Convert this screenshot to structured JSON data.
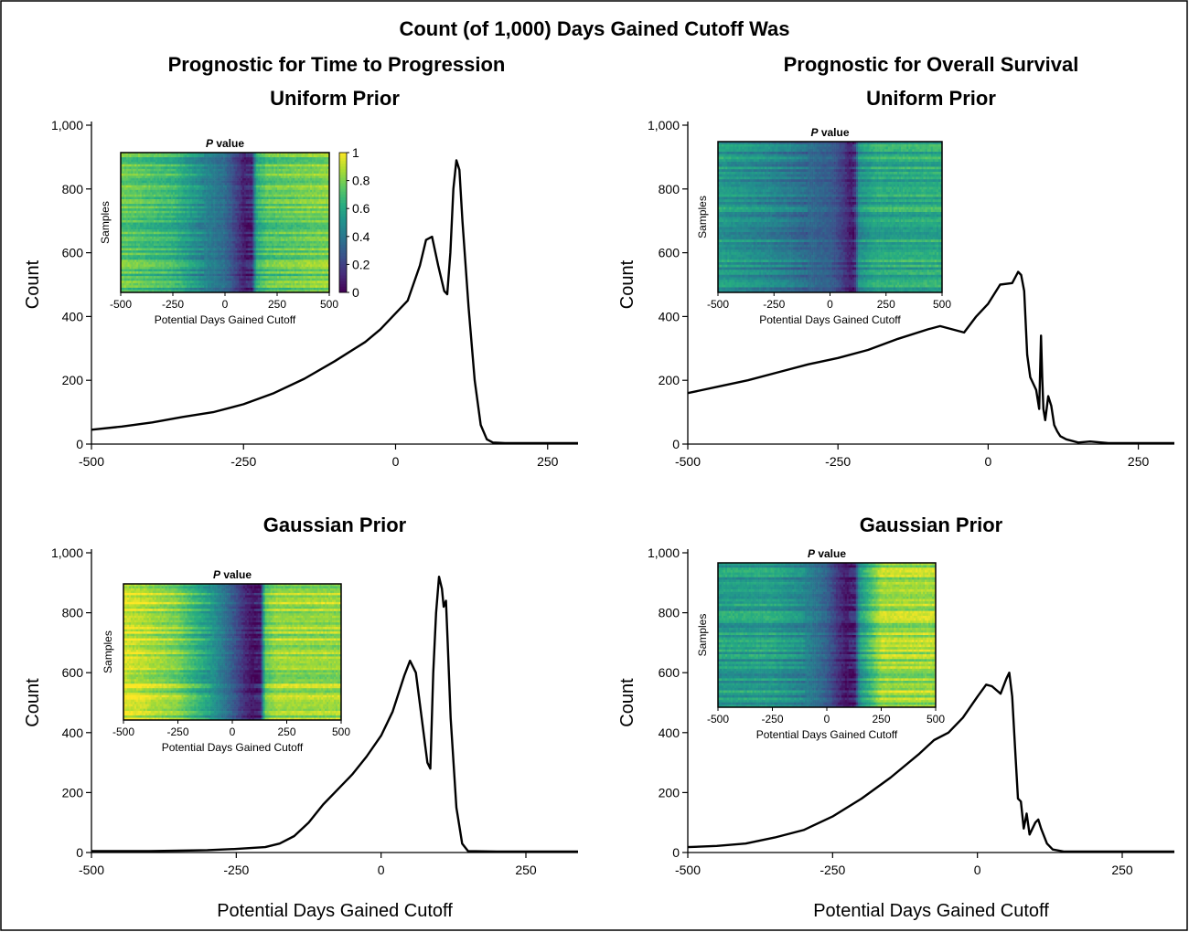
{
  "figure_title": "Count (of 1,000) Days Gained Cutoff Was",
  "columns": {
    "left": [
      "Prognostic for Time to Progression"
    ],
    "right": [
      "Prognostic for Overall Survival"
    ]
  },
  "colors": {
    "line": "#000000",
    "frame": "#000000",
    "background": "#ffffff"
  },
  "colormap": "viridis",
  "chart_data": [
    {
      "type": "line",
      "title": "Uniform Prior",
      "xlabel": "",
      "ylabel": "Count",
      "xlim": [
        -500,
        300
      ],
      "ylim": [
        0,
        1000
      ],
      "xticks": [
        -500,
        -250,
        0,
        250
      ],
      "xtick_labels": [
        "-500",
        "-250",
        "0",
        "250"
      ],
      "yticks": [
        0,
        200,
        400,
        600,
        800,
        1000
      ],
      "ytick_labels": [
        "0",
        "200",
        "400",
        "600",
        "800",
        "1,000"
      ],
      "series": [
        {
          "x": [
            -500,
            -450,
            -400,
            -350,
            -300,
            -250,
            -200,
            -150,
            -100,
            -50,
            -25,
            0,
            20,
            40,
            50,
            60,
            70,
            80,
            85,
            90,
            95,
            100,
            105,
            110,
            120,
            130,
            140,
            150,
            160,
            180,
            200,
            250,
            300
          ],
          "y": [
            45,
            55,
            68,
            85,
            100,
            125,
            160,
            205,
            260,
            320,
            360,
            410,
            450,
            560,
            640,
            650,
            560,
            480,
            470,
            600,
            800,
            890,
            860,
            700,
            430,
            200,
            60,
            15,
            5,
            3,
            3,
            3,
            3
          ]
        }
      ],
      "inset": {
        "title_prefix": "P",
        "title_suffix": " value",
        "xlabel": "Potential Days Gained Cutoff",
        "ylabel": "Samples",
        "xticks": [
          "-500",
          "-250",
          "0",
          "250",
          "500"
        ],
        "colorbar": true,
        "colorbar_ticks": [
          "0",
          "0.2",
          "0.4",
          "0.6",
          "0.8",
          "1"
        ],
        "profile": {
          "x": [
            -500,
            -250,
            -100,
            0,
            60,
            90,
            130,
            150,
            200,
            500
          ],
          "v": [
            0.75,
            0.65,
            0.45,
            0.35,
            0.18,
            0.08,
            0.1,
            0.6,
            0.72,
            0.8
          ]
        }
      }
    },
    {
      "type": "line",
      "title": "Uniform Prior",
      "xlabel": "",
      "ylabel": "Count",
      "xlim": [
        -500,
        310
      ],
      "ylim": [
        0,
        1000
      ],
      "xticks": [
        -500,
        -250,
        0,
        250
      ],
      "xtick_labels": [
        "-500",
        "-250",
        "0",
        "250"
      ],
      "yticks": [
        0,
        200,
        400,
        600,
        800,
        1000
      ],
      "ytick_labels": [
        "0",
        "200",
        "400",
        "600",
        "800",
        "1,000"
      ],
      "series": [
        {
          "x": [
            -500,
            -450,
            -400,
            -350,
            -300,
            -250,
            -200,
            -150,
            -100,
            -80,
            -60,
            -40,
            -20,
            0,
            20,
            40,
            50,
            55,
            60,
            65,
            70,
            80,
            85,
            88,
            90,
            92,
            95,
            100,
            105,
            110,
            115,
            120,
            130,
            150,
            170,
            200,
            250,
            310
          ],
          "y": [
            160,
            180,
            200,
            225,
            250,
            270,
            295,
            330,
            360,
            370,
            360,
            350,
            400,
            440,
            500,
            505,
            540,
            530,
            480,
            280,
            210,
            170,
            110,
            340,
            210,
            110,
            75,
            150,
            120,
            60,
            40,
            25,
            15,
            5,
            8,
            3,
            3,
            3
          ]
        }
      ],
      "inset": {
        "title_prefix": "P",
        "title_suffix": " value",
        "xlabel": "Potential Days Gained Cutoff",
        "ylabel": "Samples",
        "xticks": [
          "-500",
          "-250",
          "0",
          "250",
          "500"
        ],
        "colorbar": false,
        "colorbar_ticks": [],
        "profile": {
          "x": [
            -500,
            -250,
            -100,
            0,
            60,
            90,
            110,
            130,
            200,
            500
          ],
          "v": [
            0.55,
            0.45,
            0.35,
            0.3,
            0.18,
            0.08,
            0.12,
            0.5,
            0.6,
            0.62
          ]
        }
      }
    },
    {
      "type": "line",
      "title": "Gaussian Prior",
      "xlabel": "Potential Days Gained Cutoff",
      "ylabel": "Count",
      "xlim": [
        -500,
        340
      ],
      "ylim": [
        0,
        1000
      ],
      "xticks": [
        -500,
        -250,
        0,
        250
      ],
      "xtick_labels": [
        "-500",
        "-250",
        "0",
        "250"
      ],
      "yticks": [
        0,
        200,
        400,
        600,
        800,
        1000
      ],
      "ytick_labels": [
        "0",
        "200",
        "400",
        "600",
        "800",
        "1,000"
      ],
      "series": [
        {
          "x": [
            -500,
            -450,
            -400,
            -350,
            -300,
            -250,
            -200,
            -175,
            -150,
            -125,
            -100,
            -75,
            -50,
            -25,
            0,
            20,
            40,
            50,
            60,
            70,
            80,
            85,
            90,
            95,
            100,
            105,
            108,
            112,
            115,
            120,
            130,
            140,
            150,
            200,
            250,
            340
          ],
          "y": [
            5,
            5,
            5,
            6,
            8,
            12,
            18,
            30,
            55,
            100,
            160,
            210,
            260,
            320,
            390,
            470,
            590,
            640,
            600,
            450,
            300,
            280,
            600,
            800,
            920,
            880,
            820,
            840,
            700,
            450,
            150,
            30,
            5,
            3,
            3,
            3
          ]
        }
      ],
      "inset": {
        "title_prefix": "P",
        "title_suffix": " value",
        "xlabel": "Potential Days Gained Cutoff",
        "ylabel": "Samples",
        "xticks": [
          "-500",
          "-250",
          "0",
          "250",
          "500"
        ],
        "colorbar": false,
        "colorbar_ticks": [],
        "profile": {
          "x": [
            -500,
            -400,
            -250,
            -100,
            0,
            60,
            90,
            130,
            150,
            200,
            500
          ],
          "v": [
            0.95,
            0.9,
            0.8,
            0.55,
            0.3,
            0.12,
            0.06,
            0.1,
            0.75,
            0.85,
            0.85
          ]
        }
      }
    },
    {
      "type": "line",
      "title": "Gaussian Prior",
      "xlabel": "Potential Days Gained Cutoff",
      "ylabel": "Count",
      "xlim": [
        -500,
        340
      ],
      "ylim": [
        0,
        1000
      ],
      "xticks": [
        -500,
        -250,
        0,
        250
      ],
      "xtick_labels": [
        "-500",
        "-250",
        "0",
        "250"
      ],
      "yticks": [
        0,
        200,
        400,
        600,
        800,
        1000
      ],
      "ytick_labels": [
        "0",
        "200",
        "400",
        "600",
        "800",
        "1,000"
      ],
      "series": [
        {
          "x": [
            -500,
            -450,
            -400,
            -350,
            -300,
            -250,
            -200,
            -150,
            -100,
            -75,
            -50,
            -25,
            0,
            15,
            25,
            40,
            50,
            55,
            60,
            65,
            70,
            75,
            80,
            85,
            90,
            100,
            105,
            110,
            120,
            130,
            150,
            200,
            250,
            340
          ],
          "y": [
            18,
            22,
            30,
            50,
            75,
            120,
            180,
            250,
            330,
            375,
            400,
            450,
            520,
            560,
            555,
            530,
            580,
            600,
            520,
            350,
            180,
            170,
            80,
            130,
            60,
            100,
            110,
            80,
            30,
            10,
            3,
            3,
            3,
            3
          ]
        }
      ],
      "inset": {
        "title_prefix": "P",
        "title_suffix": " value",
        "xlabel": "Potential Days Gained Cutoff",
        "ylabel": "Samples",
        "xticks": [
          "-500",
          "-250",
          "0",
          "250",
          "500"
        ],
        "colorbar": false,
        "colorbar_ticks": [],
        "profile": {
          "x": [
            -500,
            -250,
            -100,
            0,
            60,
            90,
            130,
            150,
            250,
            500
          ],
          "v": [
            0.55,
            0.55,
            0.45,
            0.3,
            0.12,
            0.06,
            0.1,
            0.5,
            0.85,
            0.85
          ]
        }
      }
    }
  ]
}
